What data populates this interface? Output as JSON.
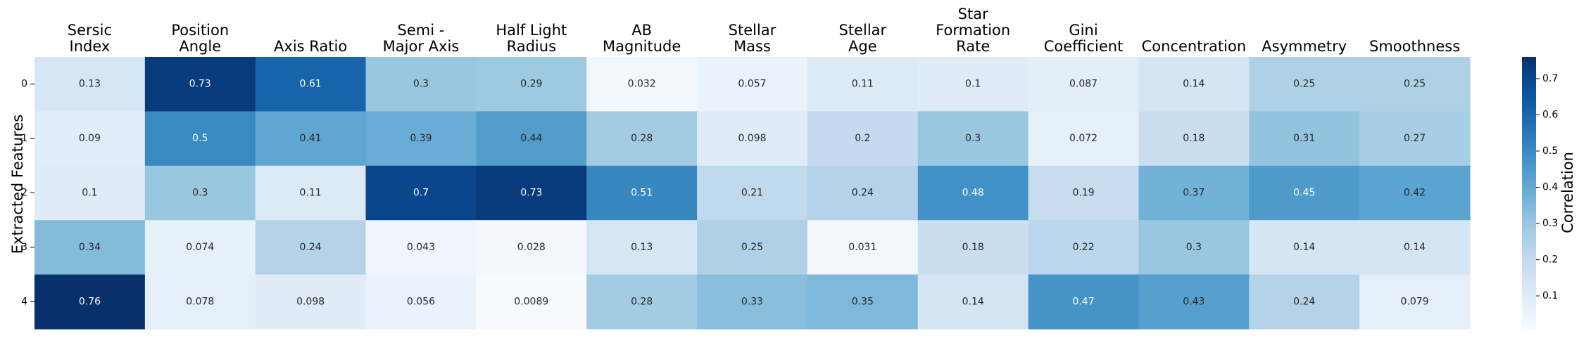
{
  "chart_data": {
    "type": "heatmap",
    "title": "",
    "xlabel": "",
    "ylabel": "Extracted Features",
    "colorbar_label": "Correlation",
    "columns": [
      [
        "Sersic",
        "Index"
      ],
      [
        "Position",
        "Angle"
      ],
      [
        "Axis Ratio"
      ],
      [
        "Semi -",
        "Major Axis"
      ],
      [
        "Half Light",
        "Radius"
      ],
      [
        "AB",
        "Magnitude"
      ],
      [
        "Stellar",
        "Mass"
      ],
      [
        "Stellar",
        "Age"
      ],
      [
        "Star",
        "Formation",
        "Rate"
      ],
      [
        "Gini",
        "Coefficient"
      ],
      [
        "Concentration"
      ],
      [
        "Asymmetry"
      ],
      [
        "Smoothness"
      ]
    ],
    "rows": [
      "0",
      "1",
      "2",
      "3",
      "4"
    ],
    "values": [
      [
        0.13,
        0.73,
        0.61,
        0.3,
        0.29,
        0.032,
        0.057,
        0.11,
        0.1,
        0.087,
        0.14,
        0.25,
        0.25
      ],
      [
        0.09,
        0.5,
        0.41,
        0.39,
        0.44,
        0.28,
        0.098,
        0.2,
        0.3,
        0.072,
        0.18,
        0.31,
        0.27
      ],
      [
        0.1,
        0.3,
        0.11,
        0.7,
        0.73,
        0.51,
        0.21,
        0.24,
        0.48,
        0.19,
        0.37,
        0.45,
        0.42
      ],
      [
        0.34,
        0.074,
        0.24,
        0.043,
        0.028,
        0.13,
        0.25,
        0.031,
        0.18,
        0.22,
        0.3,
        0.14,
        0.14
      ],
      [
        0.76,
        0.078,
        0.098,
        0.056,
        0.0089,
        0.28,
        0.33,
        0.35,
        0.14,
        0.47,
        0.43,
        0.24,
        0.079
      ]
    ],
    "labels": [
      [
        "0.13",
        "0.73",
        "0.61",
        "0.3",
        "0.29",
        "0.032",
        "0.057",
        "0.11",
        "0.1",
        "0.087",
        "0.14",
        "0.25",
        "0.25"
      ],
      [
        "0.09",
        "0.5",
        "0.41",
        "0.39",
        "0.44",
        "0.28",
        "0.098",
        "0.2",
        "0.3",
        "0.072",
        "0.18",
        "0.31",
        "0.27"
      ],
      [
        "0.1",
        "0.3",
        "0.11",
        "0.7",
        "0.73",
        "0.51",
        "0.21",
        "0.24",
        "0.48",
        "0.19",
        "0.37",
        "0.45",
        "0.42"
      ],
      [
        "0.34",
        "0.074",
        "0.24",
        "0.043",
        "0.028",
        "0.13",
        "0.25",
        "0.031",
        "0.18",
        "0.22",
        "0.3",
        "0.14",
        "0.14"
      ],
      [
        "0.76",
        "0.078",
        "0.098",
        "0.056",
        "0.0089",
        "0.28",
        "0.33",
        "0.35",
        "0.14",
        "0.47",
        "0.43",
        "0.24",
        "0.079"
      ]
    ],
    "colormap": "Blues",
    "colorbar_range": [
      0.0089,
      0.76
    ],
    "colorbar_ticks": [
      0.1,
      0.2,
      0.3,
      0.4,
      0.5,
      0.6,
      0.7
    ],
    "colorbar_tick_labels": [
      "0.1",
      "0.2",
      "0.3",
      "0.4",
      "0.5",
      "0.6",
      "0.7"
    ],
    "grid": false,
    "column_labels_position": "top"
  }
}
